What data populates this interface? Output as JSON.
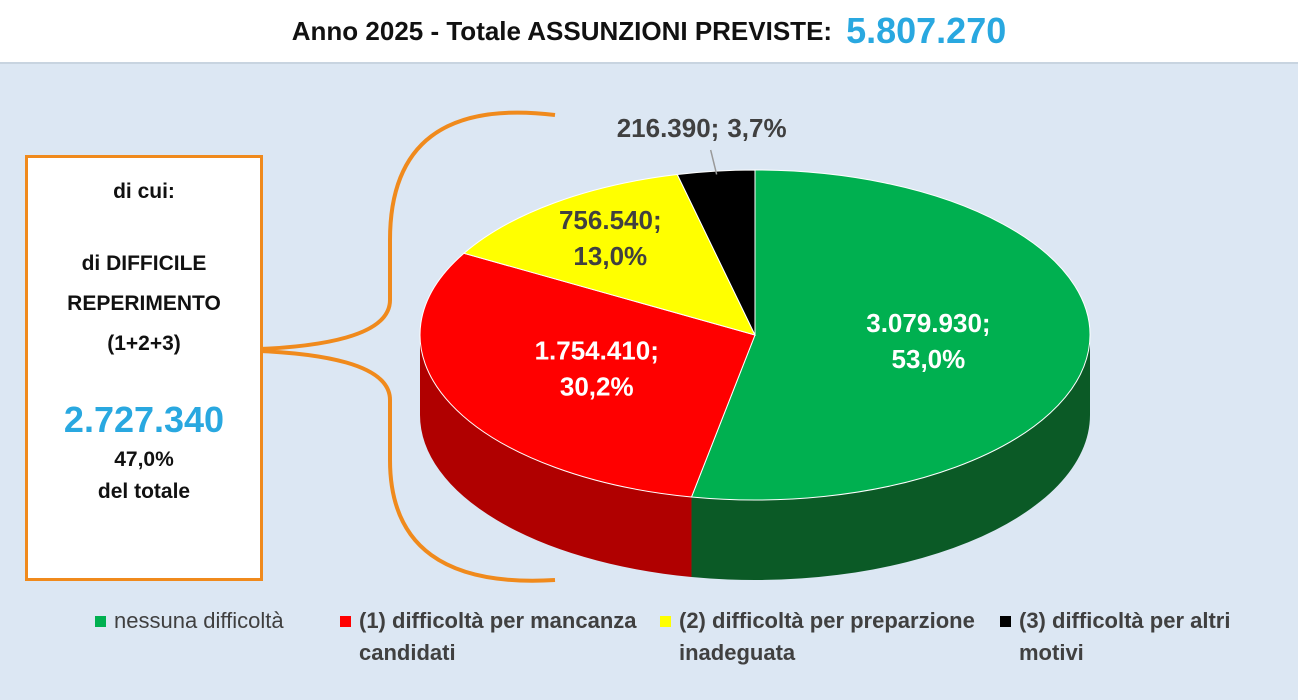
{
  "chart_data": {
    "type": "pie",
    "title": "Anno 2025 - Totale ASSUNZIONI PREVISTE:",
    "total": {
      "value": 5807270,
      "label": "5.807.270"
    },
    "categories": [
      "nessuna difficoltà",
      "(1) difficoltà per mancanza candidati",
      "(2) difficoltà per preparzione inadeguata",
      "(3) difficoltà per altri motivi"
    ],
    "values": [
      3079930,
      1754410,
      756540,
      216390
    ],
    "value_labels": [
      "3.079.930;",
      "1.754.410;",
      "756.540;",
      "216.390;"
    ],
    "percent_labels": [
      "53,0%",
      "30,2%",
      "13,0%",
      "3,7%"
    ],
    "colors": [
      "#00b050",
      "#ff0000",
      "#ffff00",
      "#000000"
    ],
    "side_colors": [
      "#0b5a26",
      "#b00000",
      "#a6a600",
      "#000000"
    ],
    "label_colors": [
      "#ffffff",
      "#ffffff",
      "#404040",
      "#404040"
    ],
    "legend_position": "bottom",
    "side_box": {
      "intro": "di cui:",
      "heading_lines": [
        "di DIFFICILE",
        "REPERIMENTO",
        "(1+2+3)"
      ],
      "amount": {
        "value": 2727340,
        "label": "2.727.340"
      },
      "percent": "47,0%",
      "note": "del totale"
    }
  }
}
